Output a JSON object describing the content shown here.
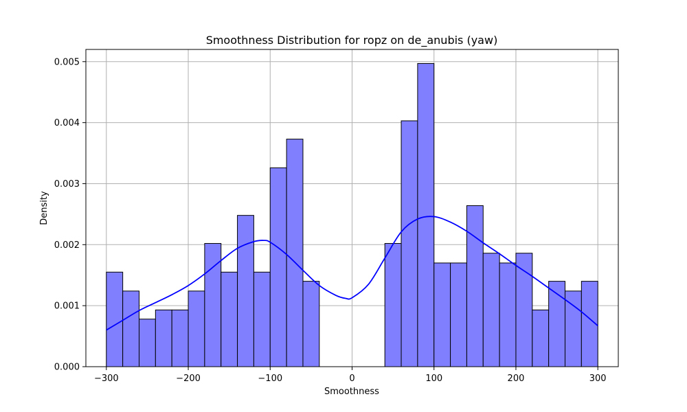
{
  "chart_data": {
    "type": "bar",
    "title": "Smoothness Distribution for ropz on de_anubis (yaw)",
    "xlabel": "Smoothness",
    "ylabel": "Density",
    "xlim": [
      -325,
      325
    ],
    "ylim": [
      0,
      0.0052
    ],
    "grid": true,
    "xticks": [
      -300,
      -200,
      -100,
      0,
      100,
      200,
      300
    ],
    "xtick_labels": [
      "−300",
      "−200",
      "−100",
      "0",
      "100",
      "200",
      "300"
    ],
    "yticks": [
      0,
      0.001,
      0.002,
      0.003,
      0.004,
      0.005
    ],
    "ytick_labels": [
      "0.000",
      "0.001",
      "0.002",
      "0.003",
      "0.004",
      "0.005"
    ],
    "bin_edges": [
      -300,
      -280,
      -260,
      -240,
      -220,
      -200,
      -180,
      -160,
      -140,
      -120,
      -100,
      -80,
      -60,
      -40,
      -20,
      0,
      20,
      40,
      60,
      80,
      100,
      120,
      140,
      160,
      180,
      200,
      220,
      240,
      260,
      280,
      300
    ],
    "values": [
      0.00155,
      0.00124,
      0.00078,
      0.00093,
      0.00093,
      0.00124,
      0.00202,
      0.00155,
      0.00248,
      0.00155,
      0.00326,
      0.00373,
      0.0014,
      0,
      0,
      0,
      0,
      0.00202,
      0.00403,
      0.00497,
      0.0017,
      0.0017,
      0.00264,
      0.00186,
      0.0017,
      0.00186,
      0.00093,
      0.0014,
      0.00124,
      0.0014
    ],
    "bar_color": "#8080ff",
    "bar_edge_color": "#000000",
    "kde": {
      "color": "#0000ff",
      "x": [
        -300,
        -280,
        -260,
        -240,
        -220,
        -200,
        -180,
        -160,
        -140,
        -120,
        -108,
        -100,
        -80,
        -60,
        -40,
        -20,
        -8,
        0,
        20,
        40,
        60,
        80,
        100,
        120,
        140,
        160,
        180,
        200,
        220,
        240,
        260,
        280,
        300
      ],
      "y": [
        0.0006,
        0.00076,
        0.00092,
        0.00105,
        0.00118,
        0.00133,
        0.00152,
        0.00174,
        0.00194,
        0.00205,
        0.00207,
        0.00204,
        0.00184,
        0.00158,
        0.00133,
        0.00117,
        0.00112,
        0.00113,
        0.00135,
        0.00178,
        0.00221,
        0.00242,
        0.00246,
        0.00237,
        0.00222,
        0.00203,
        0.00185,
        0.00166,
        0.00148,
        0.00129,
        0.0011,
        0.0009,
        0.00067
      ]
    }
  }
}
